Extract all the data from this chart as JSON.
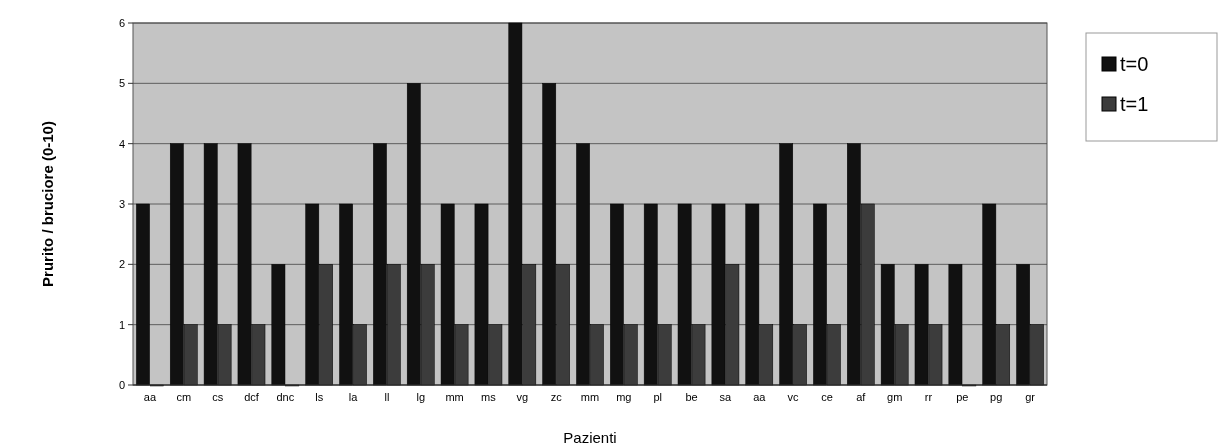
{
  "chart_data": {
    "type": "bar",
    "xlabel": "Pazienti",
    "ylabel": "Prurito / bruciore (0-10)",
    "categories": [
      "aa",
      "cm",
      "cs",
      "dcf",
      "dnc",
      "ls",
      "la",
      "ll",
      "lg",
      "mm",
      "ms",
      "vg",
      "zc",
      "mm",
      "mg",
      "pl",
      "be",
      "sa",
      "aa",
      "vc",
      "ce",
      "af",
      "gm",
      "rr",
      "pe",
      "pg",
      "gr"
    ],
    "series": [
      {
        "name": "t=0",
        "color": "#111111",
        "values": [
          3,
          4,
          4,
          4,
          2,
          3,
          3,
          4,
          5,
          3,
          3,
          6,
          5,
          4,
          3,
          3,
          3,
          3,
          3,
          4,
          3,
          4,
          2,
          2,
          2,
          3,
          2
        ]
      },
      {
        "name": "t=1",
        "color": "#3c3c3c",
        "values": [
          0,
          1,
          1,
          1,
          0,
          2,
          1,
          2,
          2,
          1,
          1,
          2,
          2,
          1,
          1,
          1,
          1,
          2,
          1,
          1,
          1,
          3,
          1,
          1,
          0,
          1,
          1
        ]
      }
    ],
    "ylim": [
      0,
      6
    ],
    "yticks": [
      0,
      1,
      2,
      3,
      4,
      5,
      6
    ],
    "grid": "y",
    "legend": "top right"
  }
}
